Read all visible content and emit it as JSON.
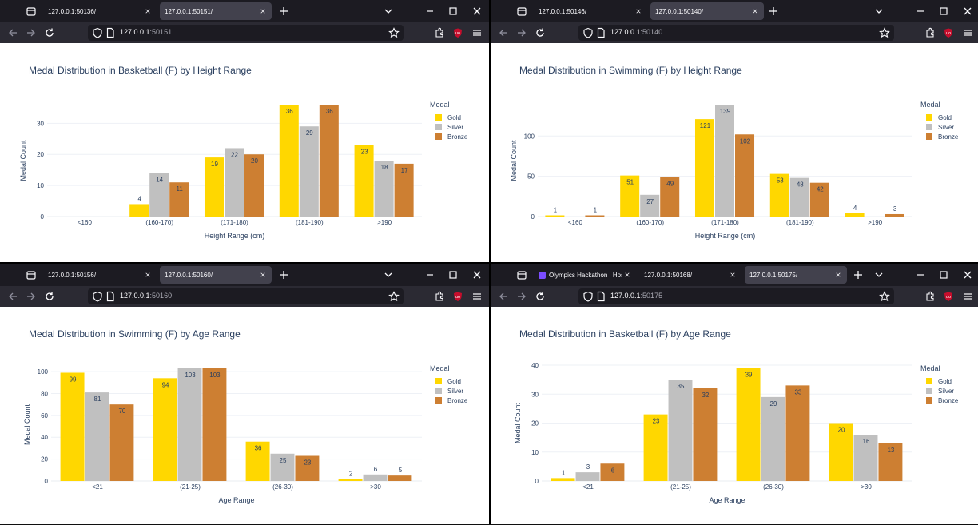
{
  "colors": {
    "gold": "#FFD700",
    "silver": "#C0C0C0",
    "bronze": "#CD7F32",
    "tabbar": "#1c1b22",
    "navbar": "#2b2a33"
  },
  "icons": [
    "tab-list-icon",
    "close-icon",
    "plus-icon",
    "chevron-down-icon",
    "minimize-icon",
    "maximize-icon",
    "back-icon",
    "forward-icon",
    "reload-icon",
    "shield-icon",
    "page-icon",
    "star-icon",
    "extensions-icon",
    "ublock-icon",
    "menu-icon"
  ],
  "windows": [
    {
      "tabs": [
        {
          "title": "127.0.0.1:50136/",
          "active": false
        },
        {
          "title": "127.0.0.1:50151/",
          "active": true
        }
      ],
      "url": {
        "host": "127.0.0.1",
        "port": ":50151"
      },
      "legend": {
        "title": "Medal",
        "items": [
          "Gold",
          "Silver",
          "Bronze"
        ]
      }
    },
    {
      "tabs": [
        {
          "title": "127.0.0.1:50146/",
          "active": false
        },
        {
          "title": "127.0.0.1:50140/",
          "active": true
        }
      ],
      "url": {
        "host": "127.0.0.1",
        "port": ":50140"
      },
      "legend": {
        "title": "Medal",
        "items": [
          "Gold",
          "Silver",
          "Bronze"
        ]
      }
    },
    {
      "tabs": [
        {
          "title": "127.0.0.1:50156/",
          "active": false
        },
        {
          "title": "127.0.0.1:50160/",
          "active": true
        }
      ],
      "url": {
        "host": "127.0.0.1",
        "port": ":50160"
      },
      "legend": {
        "title": "Medal",
        "items": [
          "Gold",
          "Silver",
          "Bronze"
        ]
      }
    },
    {
      "tabs": [
        {
          "title": "Olympics Hackathon | Host",
          "active": false,
          "favicon": true
        },
        {
          "title": "127.0.0.1:50168/",
          "active": false
        },
        {
          "title": "127.0.0.1:50175/",
          "active": true
        }
      ],
      "url": {
        "host": "127.0.0.1",
        "port": ":50175"
      },
      "legend": {
        "title": "Medal",
        "items": [
          "Gold",
          "Silver",
          "Bronze"
        ]
      }
    }
  ],
  "chart_data": [
    {
      "type": "bar",
      "title": "Medal Distribution in Basketball (F) by Height Range",
      "xlabel": "Height Range (cm)",
      "ylabel": "Medal Count",
      "categories": [
        "<160",
        "(160-170)",
        "(171-180)",
        "(181-190)",
        ">190"
      ],
      "series": [
        {
          "name": "Gold",
          "values": [
            null,
            4,
            19,
            36,
            23
          ]
        },
        {
          "name": "Silver",
          "values": [
            null,
            14,
            22,
            29,
            18
          ]
        },
        {
          "name": "Bronze",
          "values": [
            null,
            11,
            20,
            36,
            17
          ]
        }
      ],
      "ylim": [
        0,
        36
      ],
      "yticks": [
        0,
        10,
        20,
        30
      ],
      "grid": true,
      "legend": "top-right"
    },
    {
      "type": "bar",
      "title": "Medal Distribution in Swimming (F) by Height Range",
      "xlabel": "Height Range (cm)",
      "ylabel": "Medal Count",
      "categories": [
        "<160",
        "(160-170)",
        "(171-180)",
        "(181-190)",
        ">190"
      ],
      "series": [
        {
          "name": "Gold",
          "values": [
            1,
            51,
            121,
            53,
            4
          ]
        },
        {
          "name": "Silver",
          "values": [
            null,
            27,
            139,
            48,
            null
          ]
        },
        {
          "name": "Bronze",
          "values": [
            1,
            49,
            102,
            42,
            3
          ]
        }
      ],
      "ylim": [
        0,
        139
      ],
      "yticks": [
        0,
        50,
        100
      ],
      "grid": true,
      "legend": "top-right"
    },
    {
      "type": "bar",
      "title": "Medal Distribution in Swimming (F) by Age Range",
      "xlabel": "Age Range",
      "ylabel": "Medal Count",
      "categories": [
        "<21",
        "(21-25)",
        "(26-30)",
        ">30"
      ],
      "series": [
        {
          "name": "Gold",
          "values": [
            99,
            94,
            36,
            2
          ]
        },
        {
          "name": "Silver",
          "values": [
            81,
            103,
            25,
            6
          ]
        },
        {
          "name": "Bronze",
          "values": [
            70,
            103,
            23,
            5
          ]
        }
      ],
      "ylim": [
        0,
        103
      ],
      "yticks": [
        0,
        20,
        40,
        60,
        80,
        100
      ],
      "grid": true,
      "legend": "top-right"
    },
    {
      "type": "bar",
      "title": "Medal Distribution in Basketball (F) by Age Range",
      "xlabel": "Age Range",
      "ylabel": "Medal Count",
      "categories": [
        "<21",
        "(21-25)",
        "(26-30)",
        ">30"
      ],
      "series": [
        {
          "name": "Gold",
          "values": [
            1,
            23,
            39,
            20
          ]
        },
        {
          "name": "Silver",
          "values": [
            3,
            35,
            29,
            16
          ]
        },
        {
          "name": "Bronze",
          "values": [
            6,
            32,
            33,
            13
          ]
        }
      ],
      "ylim": [
        0,
        40
      ],
      "yticks": [
        0,
        10,
        20,
        30,
        40
      ],
      "grid": true,
      "legend": "top-right"
    }
  ]
}
